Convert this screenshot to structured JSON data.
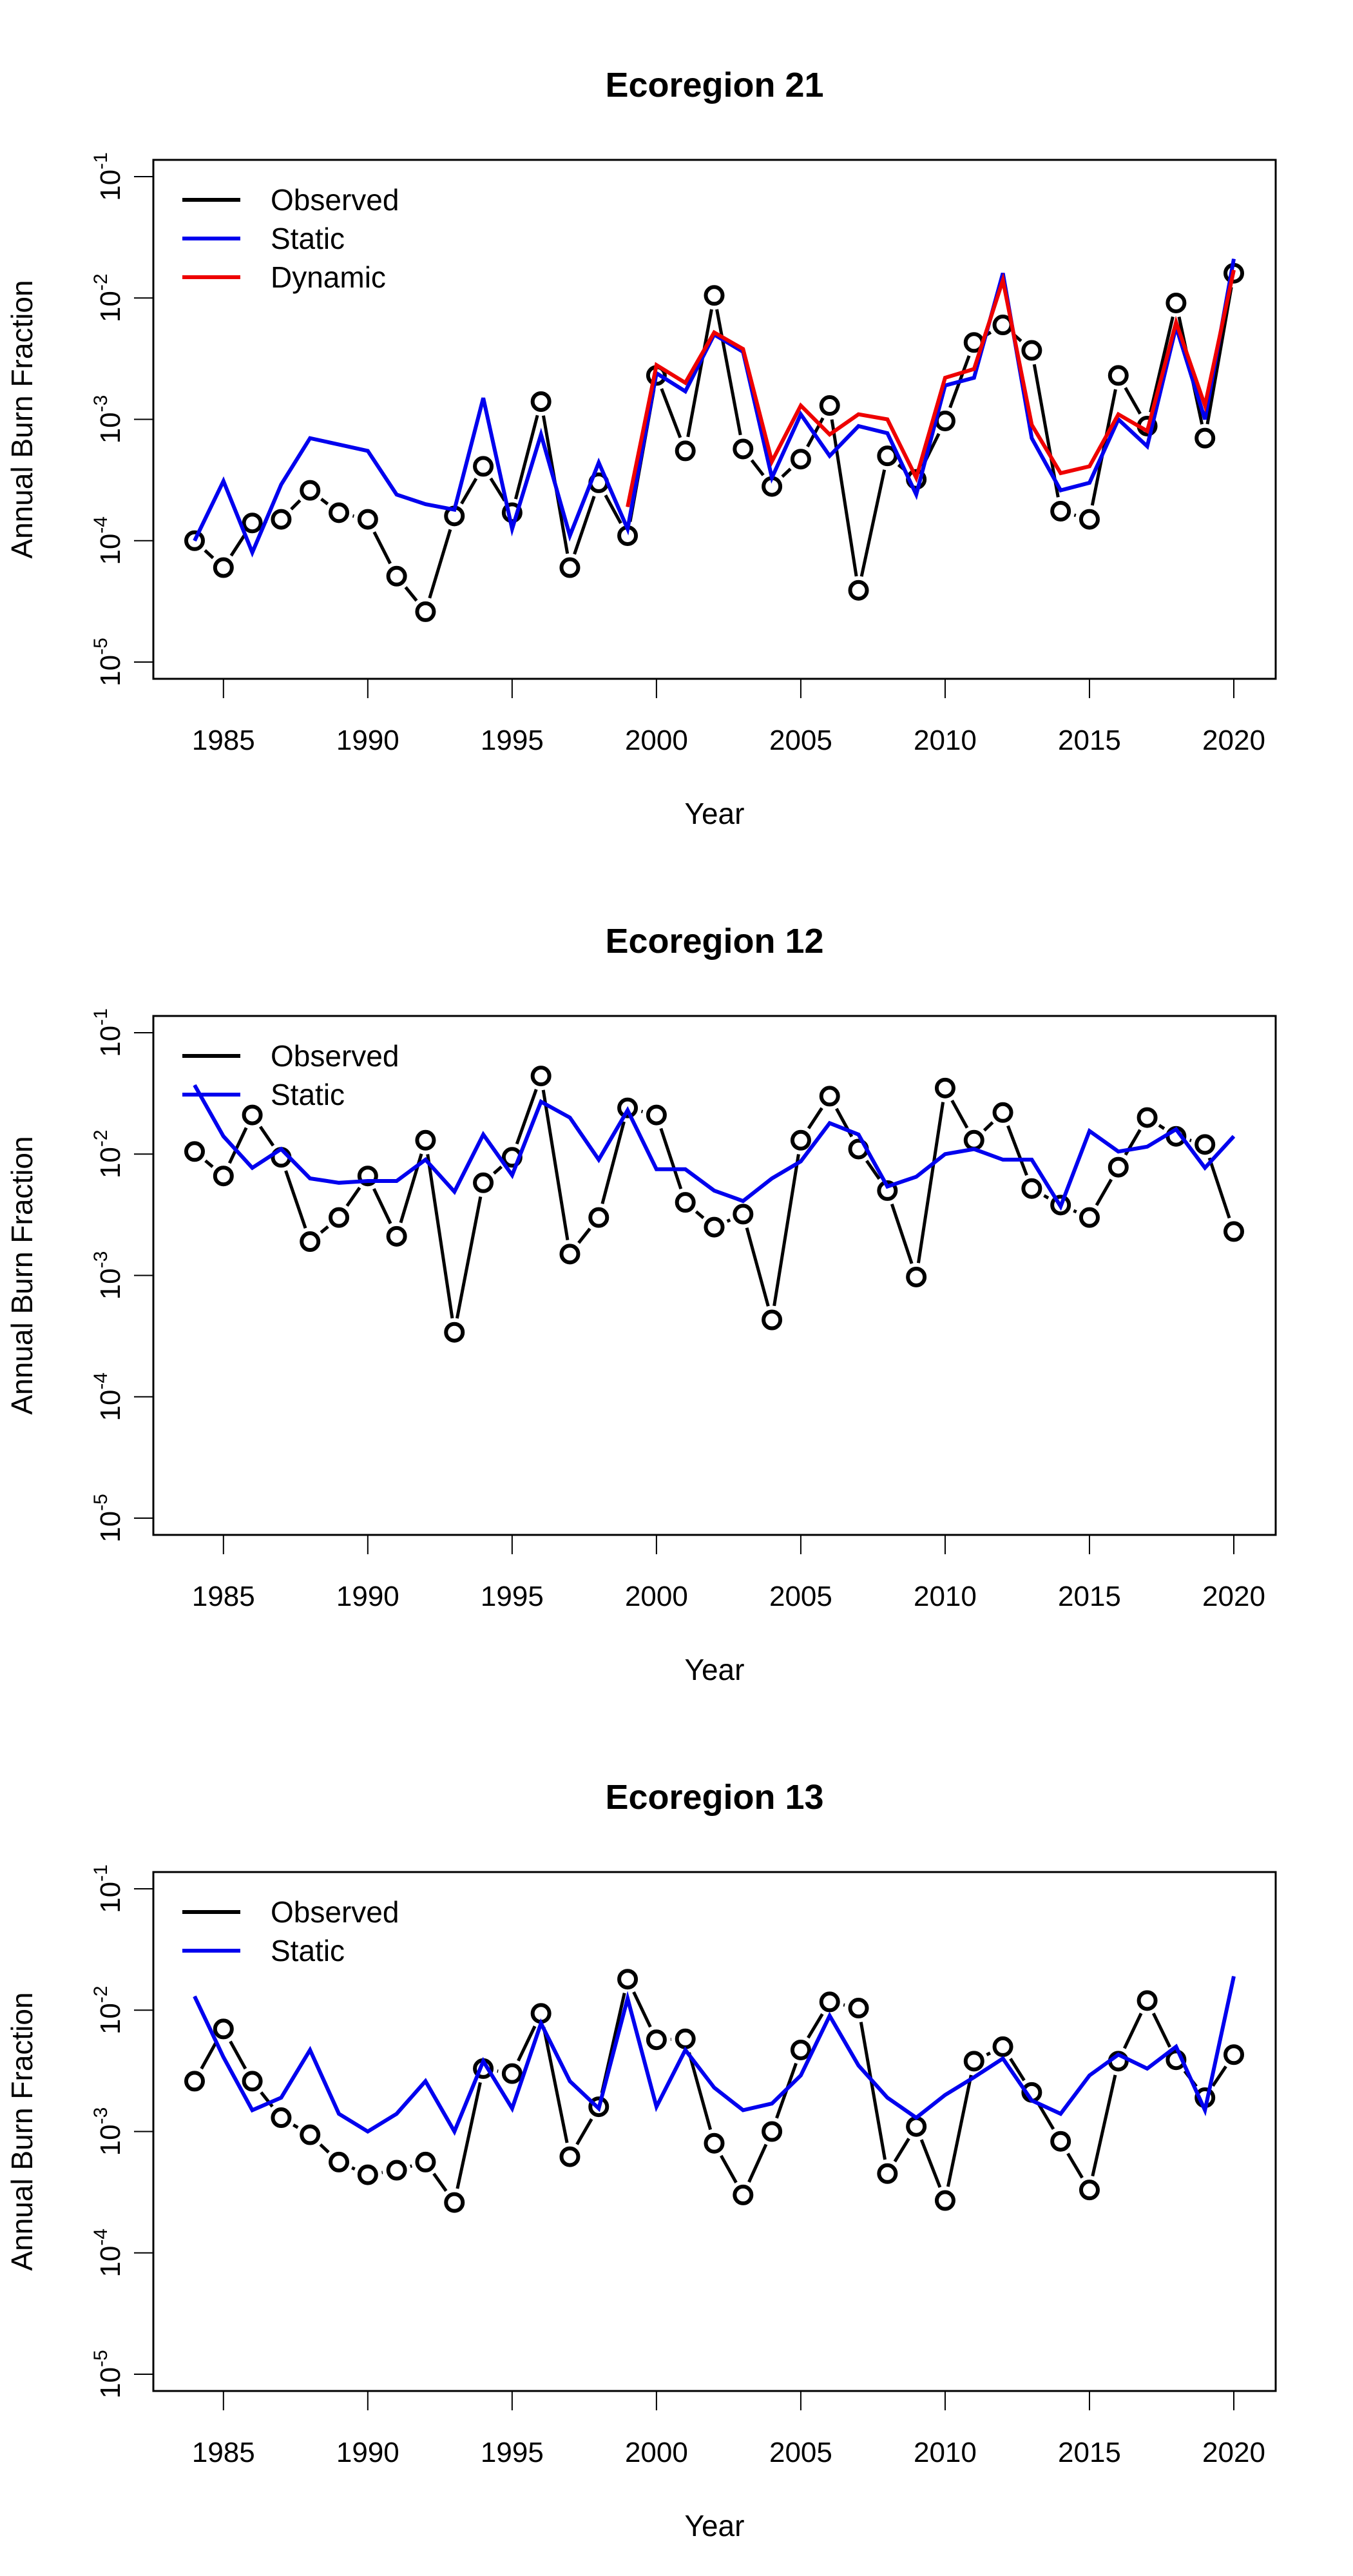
{
  "colors": {
    "observed": "#000000",
    "static": "#0000ee",
    "dynamic": "#ee0000"
  },
  "chart_data": [
    {
      "type": "line",
      "title": "Ecoregion 21",
      "xlabel": "Year",
      "ylabel": "Annual Burn Fraction",
      "yscale": "log",
      "ylim": [
        1e-05,
        0.1
      ],
      "xlim": [
        1984,
        2020
      ],
      "xticks": [
        1985,
        1990,
        1995,
        2000,
        2005,
        2010,
        2015,
        2020
      ],
      "yticks": [
        {
          "base": "10",
          "exp": "-1",
          "value": 0.1
        },
        {
          "base": "10",
          "exp": "-2",
          "value": 0.01
        },
        {
          "base": "10",
          "exp": "-3",
          "value": 0.001
        },
        {
          "base": "10",
          "exp": "-4",
          "value": 0.0001
        },
        {
          "base": "10",
          "exp": "-5",
          "value": 1e-05
        }
      ],
      "legend": {
        "position": "top-left",
        "entries": [
          "Observed",
          "Static",
          "Dynamic"
        ]
      },
      "grid": false,
      "x": [
        1984,
        1985,
        1986,
        1987,
        1988,
        1989,
        1990,
        1991,
        1992,
        1993,
        1994,
        1995,
        1996,
        1997,
        1998,
        1999,
        2000,
        2001,
        2002,
        2003,
        2004,
        2005,
        2006,
        2007,
        2008,
        2009,
        2010,
        2011,
        2012,
        2013,
        2014,
        2015,
        2016,
        2017,
        2018,
        2019,
        2020
      ],
      "series": [
        {
          "name": "Observed",
          "style": "points-dashed",
          "values": [
            0.0001,
            6e-05,
            0.00014,
            0.00015,
            0.00026,
            0.00017,
            0.00015,
            5.1e-05,
            2.6e-05,
            0.00016,
            0.00041,
            0.00017,
            0.0014,
            6e-05,
            0.0003,
            0.00011,
            0.0023,
            0.00055,
            0.0105,
            0.00057,
            0.00028,
            0.00047,
            0.0013,
            3.9e-05,
            0.0005,
            0.00032,
            0.00097,
            0.0043,
            0.006,
            0.0037,
            0.000175,
            0.00015,
            0.0023,
            0.00088,
            0.0091,
            0.0007,
            0.016
          ]
        },
        {
          "name": "Static",
          "style": "line",
          "values": [
            0.0001,
            0.00031,
            8e-05,
            0.00029,
            0.0007,
            0.00062,
            0.00055,
            0.00024,
            0.0002,
            0.00018,
            0.0015,
            0.000125,
            0.00075,
            0.00011,
            0.00044,
            0.000125,
            0.0024,
            0.0017,
            0.005,
            0.0036,
            0.00033,
            0.0011,
            0.0005,
            0.00088,
            0.00077,
            0.00024,
            0.0019,
            0.0022,
            0.016,
            0.0007,
            0.00026,
            0.0003,
            0.001,
            0.0006,
            0.0058,
            0.001,
            0.021
          ]
        },
        {
          "name": "Dynamic",
          "style": "line",
          "values": [
            null,
            null,
            null,
            null,
            null,
            null,
            null,
            null,
            null,
            null,
            null,
            null,
            null,
            null,
            null,
            0.00019,
            0.0028,
            0.002,
            0.0052,
            0.0038,
            0.00045,
            0.0013,
            0.00075,
            0.0011,
            0.001,
            0.00033,
            0.0022,
            0.0026,
            0.014,
            0.0009,
            0.00036,
            0.00041,
            0.0011,
            0.0008,
            0.0063,
            0.0013,
            0.017
          ]
        }
      ]
    },
    {
      "type": "line",
      "title": "Ecoregion 12",
      "xlabel": "Year",
      "ylabel": "Annual Burn Fraction",
      "yscale": "log",
      "ylim": [
        1e-05,
        0.1
      ],
      "xlim": [
        1984,
        2020
      ],
      "xticks": [
        1985,
        1990,
        1995,
        2000,
        2005,
        2010,
        2015,
        2020
      ],
      "yticks": [
        {
          "base": "10",
          "exp": "-1",
          "value": 0.1
        },
        {
          "base": "10",
          "exp": "-2",
          "value": 0.01
        },
        {
          "base": "10",
          "exp": "-3",
          "value": 0.001
        },
        {
          "base": "10",
          "exp": "-4",
          "value": 0.0001
        },
        {
          "base": "10",
          "exp": "-5",
          "value": 1e-05
        }
      ],
      "legend": {
        "position": "top-left",
        "entries": [
          "Observed",
          "Static"
        ]
      },
      "grid": false,
      "x": [
        1984,
        1985,
        1986,
        1987,
        1988,
        1989,
        1990,
        1991,
        1992,
        1993,
        1994,
        1995,
        1996,
        1997,
        1998,
        1999,
        2000,
        2001,
        2002,
        2003,
        2004,
        2005,
        2006,
        2007,
        2008,
        2009,
        2010,
        2011,
        2012,
        2013,
        2014,
        2015,
        2016,
        2017,
        2018,
        2019,
        2020
      ],
      "series": [
        {
          "name": "Observed",
          "style": "points-dashed",
          "values": [
            0.0105,
            0.0066,
            0.021,
            0.0094,
            0.0019,
            0.003,
            0.0066,
            0.0021,
            0.013,
            0.00034,
            0.0058,
            0.0094,
            0.044,
            0.0015,
            0.003,
            0.024,
            0.021,
            0.004,
            0.0025,
            0.0032,
            0.00043,
            0.013,
            0.03,
            0.011,
            0.005,
            0.00097,
            0.035,
            0.013,
            0.022,
            0.0052,
            0.0038,
            0.003,
            0.0078,
            0.02,
            0.014,
            0.012,
            0.0023
          ]
        },
        {
          "name": "Static",
          "style": "line",
          "values": [
            0.037,
            0.014,
            0.0077,
            0.011,
            0.0063,
            0.0058,
            0.006,
            0.006,
            0.009,
            0.0049,
            0.0145,
            0.0067,
            0.027,
            0.02,
            0.009,
            0.023,
            0.0075,
            0.0075,
            0.005,
            0.0041,
            0.0063,
            0.0087,
            0.018,
            0.0145,
            0.0054,
            0.0065,
            0.01,
            0.011,
            0.009,
            0.009,
            0.0037,
            0.0155,
            0.0105,
            0.0115,
            0.016,
            0.0077,
            0.014
          ]
        }
      ]
    },
    {
      "type": "line",
      "title": "Ecoregion 13",
      "xlabel": "Year",
      "ylabel": "Annual Burn Fraction",
      "yscale": "log",
      "ylim": [
        1e-05,
        0.1
      ],
      "xlim": [
        1984,
        2020
      ],
      "xticks": [
        1985,
        1990,
        1995,
        2000,
        2005,
        2010,
        2015,
        2020
      ],
      "yticks": [
        {
          "base": "10",
          "exp": "-1",
          "value": 0.1
        },
        {
          "base": "10",
          "exp": "-2",
          "value": 0.01
        },
        {
          "base": "10",
          "exp": "-3",
          "value": 0.001
        },
        {
          "base": "10",
          "exp": "-4",
          "value": 0.0001
        },
        {
          "base": "10",
          "exp": "-5",
          "value": 1e-05
        }
      ],
      "legend": {
        "position": "top-left",
        "entries": [
          "Observed",
          "Static"
        ]
      },
      "grid": false,
      "x": [
        1984,
        1985,
        1986,
        1987,
        1988,
        1989,
        1990,
        1991,
        1992,
        1993,
        1994,
        1995,
        1996,
        1997,
        1998,
        1999,
        2000,
        2001,
        2002,
        2003,
        2004,
        2005,
        2006,
        2007,
        2008,
        2009,
        2010,
        2011,
        2012,
        2013,
        2014,
        2015,
        2016,
        2017,
        2018,
        2019,
        2020
      ],
      "series": [
        {
          "name": "Observed",
          "style": "points-dashed",
          "values": [
            0.0026,
            0.007,
            0.0026,
            0.0013,
            0.00094,
            0.00056,
            0.00044,
            0.00048,
            0.00056,
            0.00026,
            0.0033,
            0.003,
            0.0094,
            0.00062,
            0.0016,
            0.018,
            0.0057,
            0.0058,
            0.0008,
            0.0003,
            0.001,
            0.0047,
            0.0117,
            0.0104,
            0.00045,
            0.0011,
            0.00027,
            0.0038,
            0.005,
            0.0021,
            0.00083,
            0.00033,
            0.0038,
            0.012,
            0.0039,
            0.0019,
            0.0043
          ]
        },
        {
          "name": "Static",
          "style": "line",
          "values": [
            0.013,
            0.0041,
            0.0015,
            0.0019,
            0.0047,
            0.0014,
            0.001,
            0.0014,
            0.0026,
            0.001,
            0.0038,
            0.00155,
            0.0078,
            0.0026,
            0.00155,
            0.0125,
            0.0016,
            0.0047,
            0.0023,
            0.0015,
            0.0017,
            0.0029,
            0.009,
            0.0035,
            0.0019,
            0.0013,
            0.002,
            0.0028,
            0.004,
            0.0018,
            0.0014,
            0.0029,
            0.0043,
            0.0033,
            0.005,
            0.0015,
            0.019
          ]
        }
      ]
    }
  ]
}
